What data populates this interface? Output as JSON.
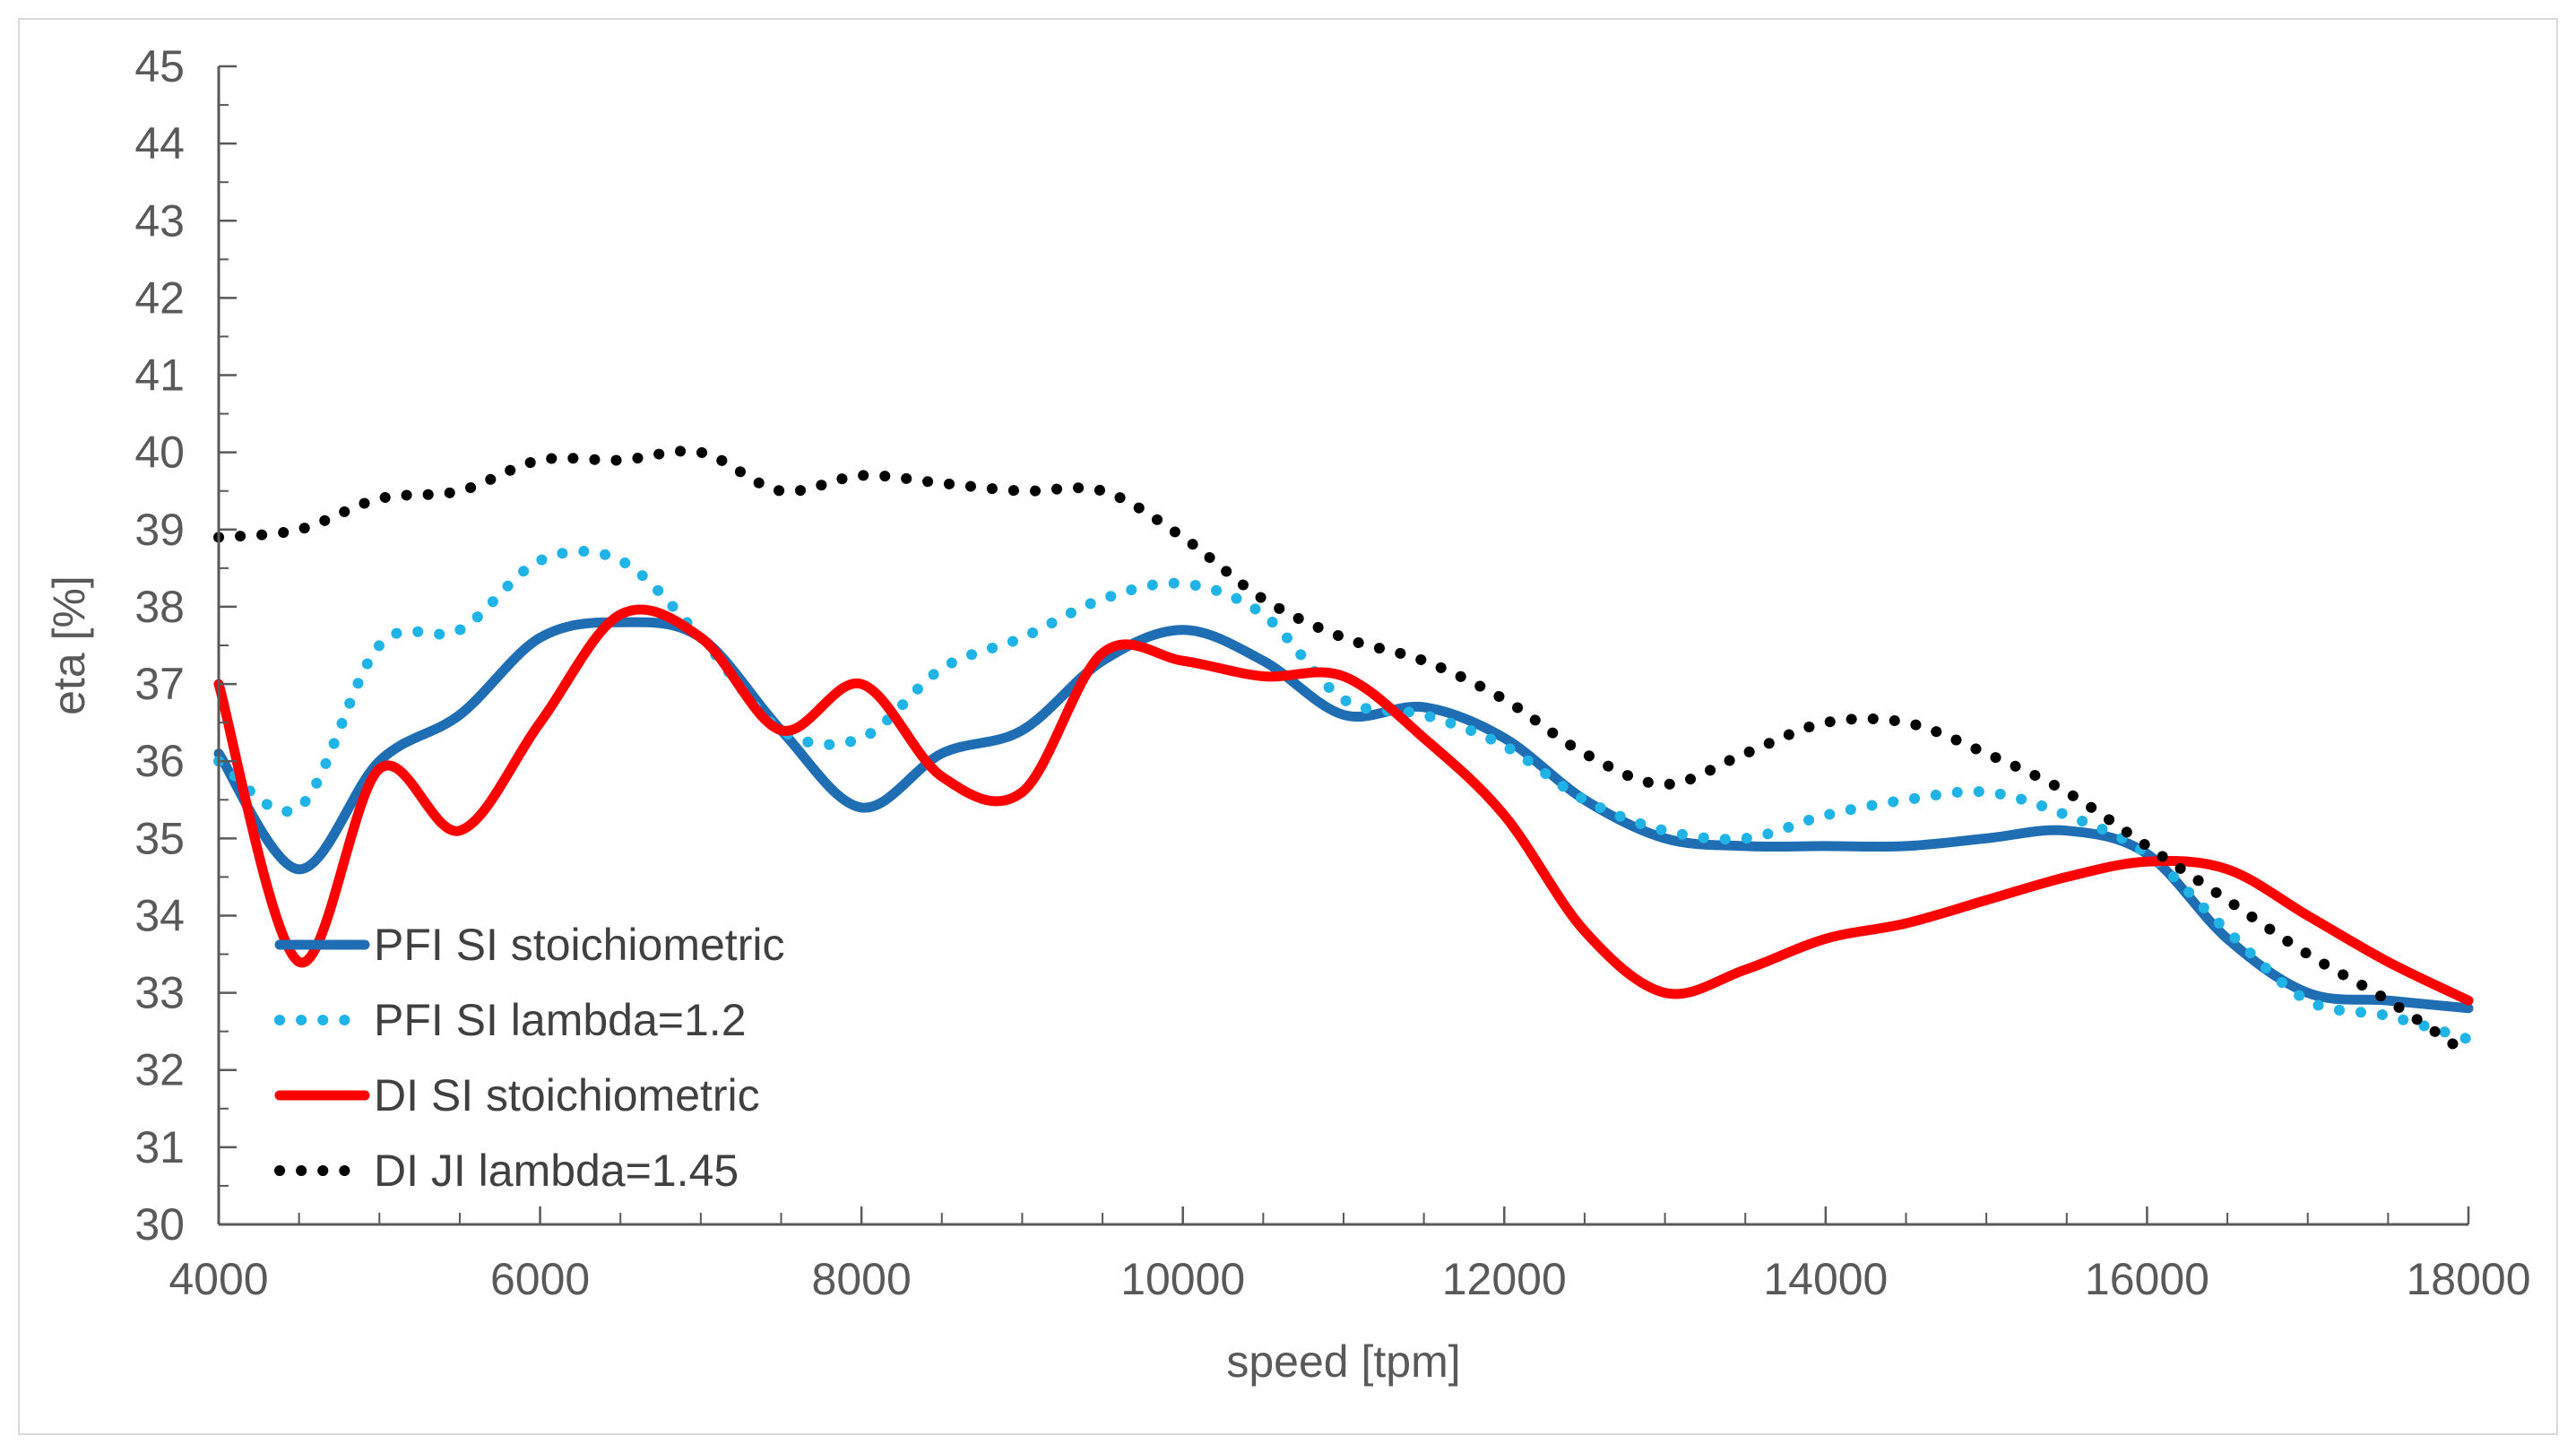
{
  "chart_data": {
    "type": "line",
    "title": "",
    "xlabel": "speed [tpm]",
    "ylabel": "eta [%]",
    "xlim": [
      4000,
      18000
    ],
    "ylim": [
      30,
      45
    ],
    "xticks": [
      4000,
      6000,
      8000,
      10000,
      12000,
      14000,
      16000,
      18000
    ],
    "yticks": [
      30,
      31,
      32,
      33,
      34,
      35,
      36,
      37,
      38,
      39,
      40,
      41,
      42,
      43,
      44,
      45
    ],
    "grid": false,
    "legend_position": "bottom-left",
    "series": [
      {
        "name": "PFI SI stoichiometric",
        "color": "#1f6eb4",
        "style": "solid",
        "x": [
          4000,
          4500,
          5000,
          5500,
          6000,
          6500,
          7000,
          7500,
          8000,
          8500,
          9000,
          9500,
          10000,
          10500,
          11000,
          11500,
          12000,
          12500,
          13000,
          13500,
          14000,
          14500,
          15000,
          15500,
          16000,
          16500,
          17000,
          17500,
          18000
        ],
        "y": [
          36.1,
          34.6,
          36.0,
          36.6,
          37.6,
          37.8,
          37.6,
          36.4,
          35.4,
          36.1,
          36.4,
          37.3,
          37.7,
          37.3,
          36.6,
          36.7,
          36.3,
          35.5,
          35.0,
          34.9,
          34.9,
          34.9,
          35.0,
          35.1,
          34.8,
          33.7,
          33.0,
          32.9,
          32.8
        ]
      },
      {
        "name": "PFI SI lambda=1.2",
        "color": "#1fb3e6",
        "style": "dotted",
        "x": [
          4000,
          4500,
          5000,
          5500,
          6000,
          6500,
          7000,
          7500,
          8000,
          8500,
          9000,
          9500,
          10000,
          10500,
          11000,
          11500,
          12000,
          12500,
          13000,
          13500,
          14000,
          14500,
          15000,
          15500,
          16000,
          16500,
          17000,
          17500,
          18000
        ],
        "y": [
          36.0,
          35.4,
          37.5,
          37.7,
          38.6,
          38.6,
          37.6,
          36.4,
          36.3,
          37.2,
          37.6,
          38.1,
          38.3,
          37.9,
          36.8,
          36.6,
          36.2,
          35.5,
          35.1,
          35.0,
          35.3,
          35.5,
          35.6,
          35.3,
          34.8,
          33.8,
          32.9,
          32.7,
          32.4
        ]
      },
      {
        "name": "DI SI stoichiometric",
        "color": "#ff0000",
        "style": "solid",
        "x": [
          4000,
          4500,
          5000,
          5500,
          6000,
          6500,
          7000,
          7500,
          8000,
          8500,
          9000,
          9500,
          10000,
          10500,
          11000,
          11500,
          12000,
          12500,
          13000,
          13500,
          14000,
          14500,
          15000,
          15500,
          16000,
          16500,
          17000,
          17500,
          18000
        ],
        "y": [
          37.0,
          33.4,
          35.9,
          35.1,
          36.5,
          37.9,
          37.6,
          36.4,
          37.0,
          35.8,
          35.6,
          37.4,
          37.3,
          37.1,
          37.1,
          36.3,
          35.3,
          33.8,
          33.0,
          33.3,
          33.7,
          33.9,
          34.2,
          34.5,
          34.7,
          34.6,
          34.0,
          33.4,
          32.9
        ]
      },
      {
        "name": "DI JI lambda=1.45",
        "color": "#000000",
        "style": "dotted",
        "x": [
          4000,
          4500,
          5000,
          5500,
          6000,
          6500,
          7000,
          7500,
          8000,
          8500,
          9000,
          9500,
          10000,
          10500,
          11000,
          11500,
          12000,
          12500,
          13000,
          13500,
          14000,
          14500,
          15000,
          15500,
          16000,
          16500,
          17000,
          17500,
          18000
        ],
        "y": [
          38.9,
          39.0,
          39.4,
          39.5,
          39.9,
          39.9,
          40.0,
          39.5,
          39.7,
          39.6,
          39.5,
          39.5,
          38.9,
          38.1,
          37.6,
          37.3,
          36.8,
          36.1,
          35.7,
          36.1,
          36.5,
          36.5,
          36.1,
          35.6,
          34.9,
          34.2,
          33.5,
          32.9,
          32.2
        ]
      }
    ]
  }
}
